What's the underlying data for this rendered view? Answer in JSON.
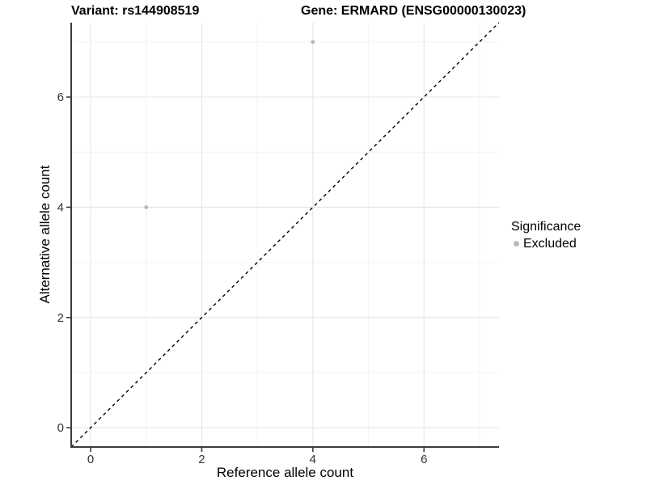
{
  "figure": {
    "title_left": "Variant: rs144908519",
    "title_right": "Gene: ERMARD (ENSG00000130023)"
  },
  "chart_data": {
    "type": "scatter",
    "title": "Variant: rs144908519   Gene: ERMARD (ENSG00000130023)",
    "variant_label": "Variant: rs144908519",
    "gene_label": "Gene: ERMARD (ENSG00000130023)",
    "xlabel": "Reference allele count",
    "ylabel": "Alternative allele count",
    "xlim": [
      -0.35,
      7.35
    ],
    "ylim": [
      -0.35,
      7.35
    ],
    "x_ticks": [
      0,
      2,
      4,
      6
    ],
    "y_ticks": [
      0,
      2,
      4,
      6
    ],
    "x_minor_ticks": [
      1,
      3,
      5,
      7
    ],
    "y_minor_ticks": [
      1,
      3,
      5,
      7
    ],
    "grid": true,
    "series": [
      {
        "name": "Excluded",
        "color": "#b9b9b9",
        "points": [
          {
            "x": 1,
            "y": 4
          },
          {
            "x": 4,
            "y": 7
          }
        ]
      }
    ],
    "reference_line": {
      "type": "identity",
      "style": "dashed",
      "color": "#000000",
      "from": [
        -0.35,
        -0.35
      ],
      "to": [
        7.35,
        7.35
      ]
    },
    "legend": {
      "title": "Significance",
      "position": "right",
      "items": [
        {
          "label": "Excluded",
          "color": "#b9b9b9",
          "marker": "circle"
        }
      ]
    },
    "style": {
      "background": "#ffffff",
      "major_grid_color": "#e8e8e8",
      "minor_grid_color": "#f4f4f4",
      "axis_line_color": "#3c3c3c",
      "tick_color": "#3c3c3c",
      "tick_label_color": "#333333",
      "point_radius": 2.4
    }
  }
}
